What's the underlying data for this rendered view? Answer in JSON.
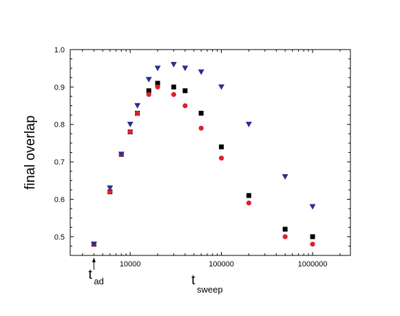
{
  "chart_data": {
    "type": "scatter",
    "title": "",
    "xlabel": {
      "main": "t",
      "sub": "sweep"
    },
    "ylabel": "final overlap",
    "x_scale": "log",
    "xlim": [
      2200,
      2600000
    ],
    "ylim": [
      0.45,
      1.0
    ],
    "x_ticks": [
      10000,
      100000,
      1000000
    ],
    "x_tick_labels": [
      "10000",
      "100000",
      "1000000"
    ],
    "y_ticks": [
      0.5,
      0.6,
      0.7,
      0.8,
      0.9,
      1.0
    ],
    "y_tick_labels": [
      "0.5",
      "0.6",
      "0.7",
      "0.8",
      "0.9",
      "1.0"
    ],
    "grid": false,
    "legend": "none",
    "annotation": {
      "main": "t",
      "sub": "ad",
      "x": 4000
    },
    "series": [
      {
        "marker": "square",
        "color": "#000000",
        "x": [
          4000,
          6000,
          8000,
          10000,
          12000,
          16000,
          20000,
          30000,
          40000,
          60000,
          100000,
          200000,
          500000,
          1000000
        ],
        "y": [
          0.48,
          0.62,
          0.72,
          0.78,
          0.83,
          0.89,
          0.91,
          0.9,
          0.89,
          0.83,
          0.74,
          0.61,
          0.52,
          0.5
        ]
      },
      {
        "marker": "circle",
        "color": "#e0202a",
        "x": [
          4000,
          6000,
          8000,
          10000,
          12000,
          16000,
          20000,
          30000,
          40000,
          60000,
          100000,
          200000,
          500000,
          1000000
        ],
        "y": [
          0.48,
          0.62,
          0.72,
          0.78,
          0.83,
          0.88,
          0.9,
          0.88,
          0.85,
          0.79,
          0.71,
          0.59,
          0.5,
          0.48
        ]
      },
      {
        "marker": "triangle-down",
        "color": "#2a2f8f",
        "x": [
          4000,
          6000,
          8000,
          10000,
          12000,
          16000,
          20000,
          30000,
          40000,
          60000,
          100000,
          200000,
          500000,
          1000000
        ],
        "y": [
          0.48,
          0.63,
          0.72,
          0.8,
          0.85,
          0.92,
          0.95,
          0.96,
          0.95,
          0.94,
          0.9,
          0.8,
          0.66,
          0.58
        ]
      }
    ]
  }
}
